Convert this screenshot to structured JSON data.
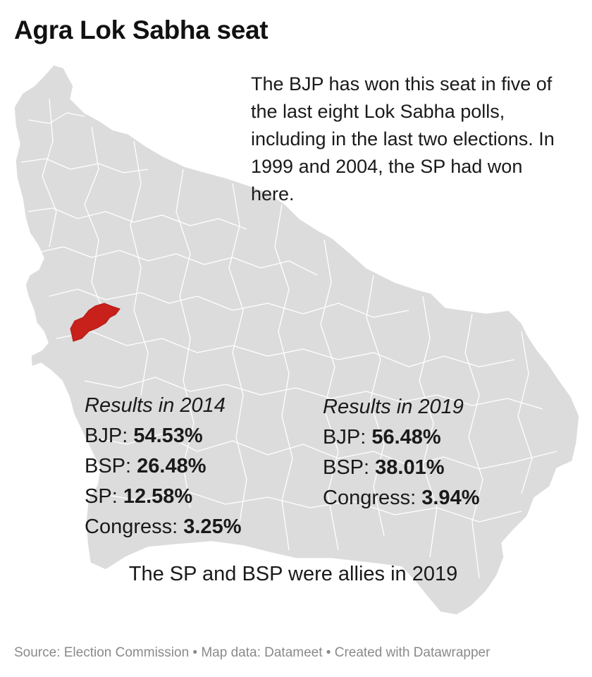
{
  "title": "Agra Lok Sabha seat",
  "intro": "The BJP has won this seat in five of the last eight Lok Sabha polls, including in the last two elections. In 1999 and 2004, the SP had won here.",
  "map": {
    "region_name": "Agra",
    "state_fill": "#dcdcdc",
    "border_color": "#ffffff",
    "highlight_color": "#c8201b"
  },
  "results_2014": {
    "heading": "Results in 2014",
    "rows": [
      {
        "party": "BJP",
        "value": "54.53%"
      },
      {
        "party": "BSP",
        "value": "26.48%"
      },
      {
        "party": "SP",
        "value": "12.58%"
      },
      {
        "party": "Congress",
        "value": "3.25%"
      }
    ]
  },
  "results_2019": {
    "heading": "Results in 2019",
    "rows": [
      {
        "party": "BJP",
        "value": "56.48%"
      },
      {
        "party": "BSP",
        "value": "38.01%"
      },
      {
        "party": "Congress",
        "value": "3.94%"
      }
    ]
  },
  "note": "The SP and BSP were allies in 2019",
  "source": "Source: Election Commission • Map data: Datameet • Created with Datawrapper"
}
